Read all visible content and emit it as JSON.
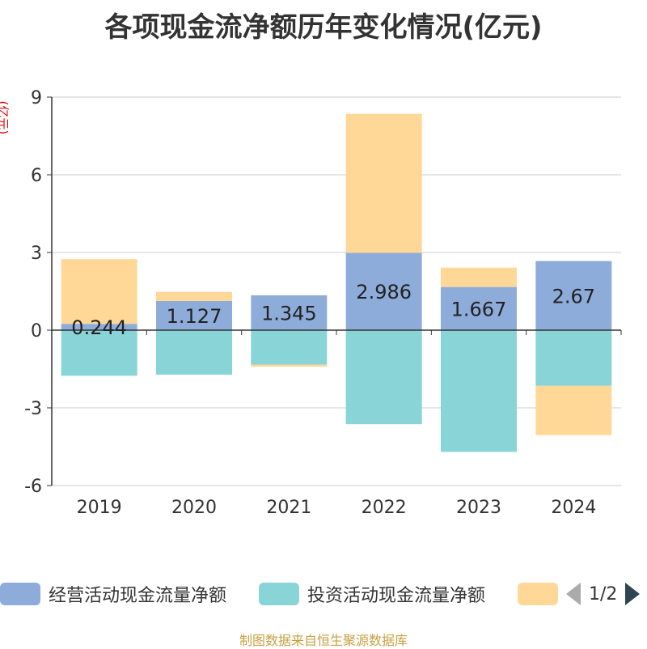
{
  "chart_data": {
    "type": "bar",
    "stacked": true,
    "title": "各项现金流净额历年变化情况(亿元)",
    "ylabel": "(亿元)",
    "xlabel": "",
    "categories": [
      "2019",
      "2020",
      "2021",
      "2022",
      "2023",
      "2024"
    ],
    "ylim": [
      -6,
      9
    ],
    "yticks": [
      -6,
      -3,
      0,
      3,
      6,
      9
    ],
    "grid": true,
    "series": [
      {
        "name": "经营活动现金流量净额",
        "color": "#8eacd9",
        "values": [
          0.244,
          1.127,
          1.345,
          2.986,
          1.667,
          2.67
        ],
        "labels": [
          "0.244",
          "1.127",
          "1.345",
          "2.986",
          "1.667",
          "2.67"
        ]
      },
      {
        "name": "投资活动现金流量净额",
        "color": "#88d4d6",
        "values": [
          -1.76,
          -1.72,
          -1.33,
          -3.63,
          -4.7,
          -2.15
        ]
      },
      {
        "name": "",
        "color": "#ffd898",
        "values": [
          2.5,
          0.35,
          -0.08,
          5.37,
          0.75,
          -1.9
        ]
      }
    ],
    "legend": {
      "position": "bottom",
      "page": "1/2"
    }
  },
  "source": "制图数据来自恒生聚源数据库"
}
